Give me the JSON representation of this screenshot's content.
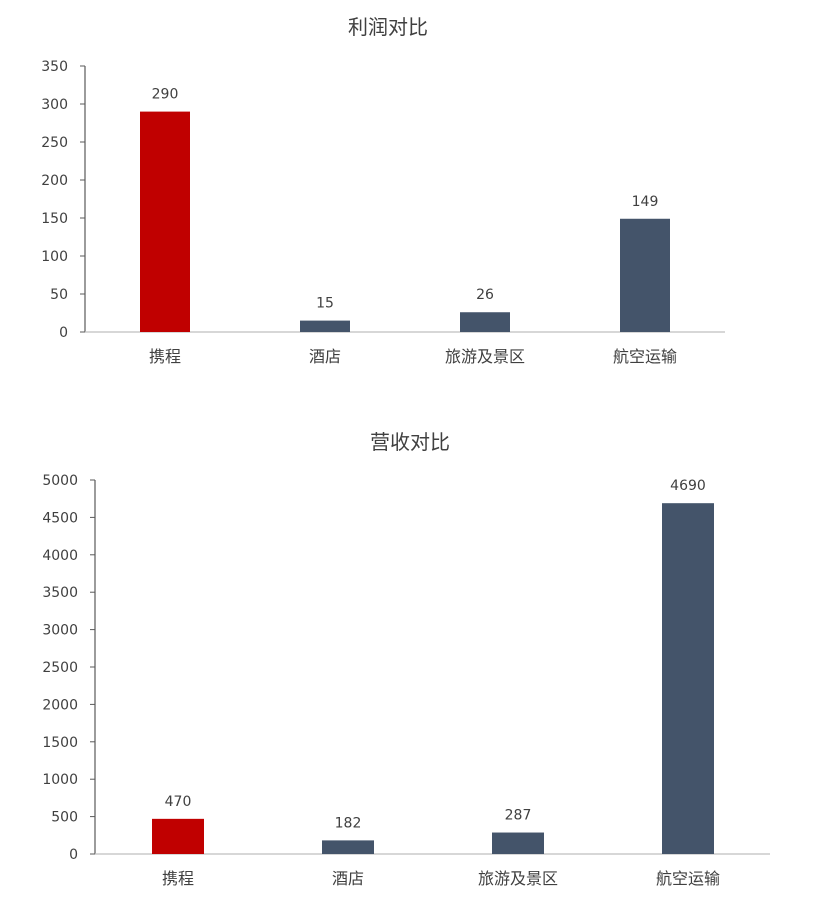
{
  "colors": {
    "highlight": "#C00000",
    "default": "#44546A",
    "axis": "#BFBFBF",
    "text": "#404040"
  },
  "chart_data": [
    {
      "type": "bar",
      "title": "利润对比",
      "categories": [
        "携程",
        "酒店",
        "旅游及景区",
        "航空运输"
      ],
      "values": [
        290,
        15,
        26,
        149
      ],
      "highlight_index": 0,
      "ylim": [
        0,
        350
      ],
      "yticks": [
        0,
        50,
        100,
        150,
        200,
        250,
        300,
        350
      ],
      "data_labels": true,
      "grid": false,
      "legend": "none"
    },
    {
      "type": "bar",
      "title": "营收对比",
      "categories": [
        "携程",
        "酒店",
        "旅游及景区",
        "航空运输"
      ],
      "values": [
        470,
        182,
        287,
        4690
      ],
      "highlight_index": 0,
      "ylim": [
        0,
        5000
      ],
      "yticks": [
        0,
        500,
        1000,
        1500,
        2000,
        2500,
        3000,
        3500,
        4000,
        4500,
        5000
      ],
      "data_labels": true,
      "grid": false,
      "legend": "none"
    }
  ]
}
